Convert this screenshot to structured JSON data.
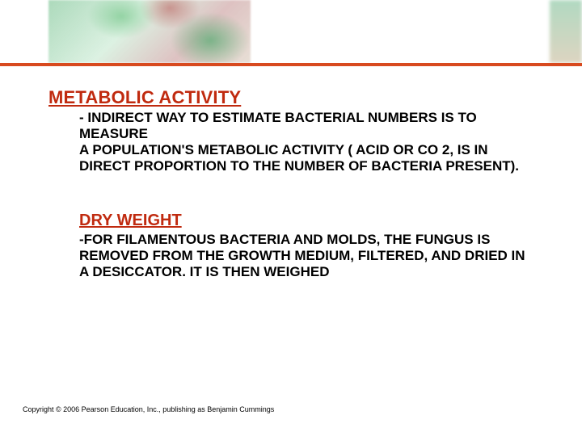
{
  "divider_color": "#d84a1f",
  "heading1_color": "#c02a0f",
  "heading2_color": "#c02a0f",
  "body_color": "#000000",
  "copyright_color": "#000000",
  "section1": {
    "title": "METABOLIC ACTIVITY",
    "body": " - INDIRECT WAY TO ESTIMATE BACTERIAL NUMBERS IS TO MEASURE\nA POPULATION'S METABOLIC ACTIVITY ( ACID OR CO 2, IS IN DIRECT PROPORTION TO THE NUMBER OF BACTERIA PRESENT)."
  },
  "section2": {
    "title": "DRY WEIGHT",
    "body": "-FOR FILAMENTOUS BACTERIA AND MOLDS, THE FUNGUS IS REMOVED FROM THE GROWTH MEDIUM, FILTERED, AND DRIED IN A DESICCATOR. IT IS THEN WEIGHED"
  },
  "copyright": "Copyright © 2006 Pearson Education, Inc., publishing as Benjamin Cummings"
}
